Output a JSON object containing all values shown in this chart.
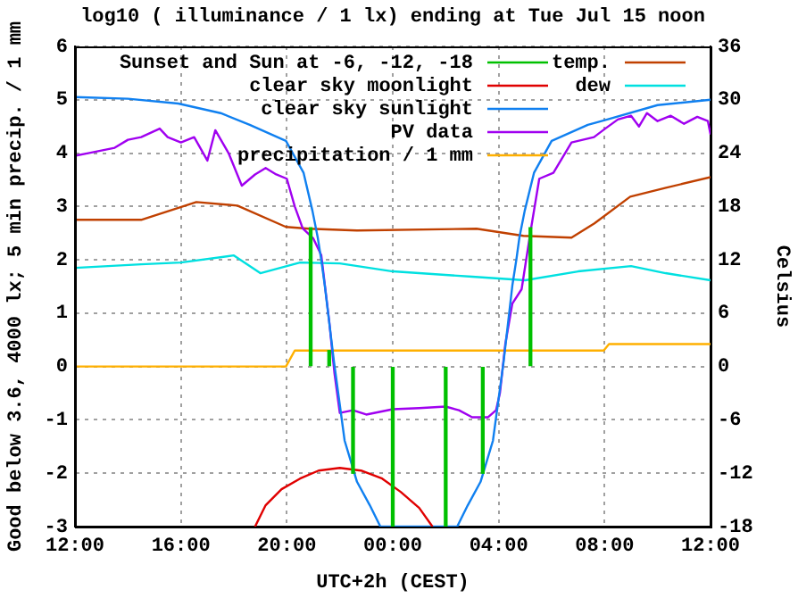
{
  "chart_data": {
    "type": "line",
    "title": "log10 ( illuminance / 1 lx) ending at Tue Jul 15 noon",
    "xlabel": "UTC+2h (CEST)",
    "ylabel": "Good below 3.6, 4000 lx; 5 min precip. / 1 mm",
    "y2label": "Celsius",
    "xlim": [
      "--07-14T12:00",
      "--07-15T12:00"
    ],
    "xticks": [
      {
        "value": "--07-14T12:00",
        "label": "12:00"
      },
      {
        "value": "--07-14T16:00",
        "label": "16:00"
      },
      {
        "value": "--07-14T20:00",
        "label": "20:00"
      },
      {
        "value": "--07-15T00:00",
        "label": "00:00"
      },
      {
        "value": "--07-15T04:00",
        "label": "04:00"
      },
      {
        "value": "--07-15T08:00",
        "label": "08:00"
      },
      {
        "value": "--07-15T12:00",
        "label": "12:00"
      }
    ],
    "ylim": [
      -3,
      6
    ],
    "yticks": [
      -3,
      -2,
      -1,
      0,
      1,
      2,
      3,
      4,
      5,
      6
    ],
    "y2lim": [
      -18,
      36
    ],
    "y2ticks": [
      -18,
      -12,
      -6,
      0,
      6,
      12,
      18,
      24,
      30,
      36
    ],
    "grid": true,
    "legend": "top",
    "series": [
      {
        "name": "Sunset and Sun at -6, -12, -18",
        "type": "bar",
        "color": "#00c000",
        "x": [
          "--07-14T20:54",
          "--07-14T21:36",
          "--07-14T22:30",
          "--07-15T00:00",
          "--07-15T02:00",
          "--07-15T03:24",
          "--07-15T05:12"
        ],
        "base": [
          0,
          0,
          -2,
          -3,
          -3,
          -2,
          0
        ],
        "values": [
          2.6,
          0.3,
          2,
          3,
          3,
          2,
          2.6
        ]
      },
      {
        "name": "clear sky moonlight",
        "color": "#e00000",
        "x": [
          "--07-14T18:48",
          "--07-14T19:12",
          "--07-14T19:48",
          "--07-14T20:30",
          "--07-14T21:12",
          "--07-14T22:00",
          "--07-14T22:48",
          "--07-14T23:36",
          "--07-15T00:18",
          "--07-15T01:00",
          "--07-15T01:30"
        ],
        "values": [
          -3,
          -2.6,
          -2.3,
          -2.1,
          -1.95,
          -1.9,
          -1.95,
          -2.1,
          -2.35,
          -2.65,
          -3
        ]
      },
      {
        "name": "clear sky sunlight",
        "color": "#1080f0",
        "x": [
          "--07-14T12:00",
          "--07-14T14:00",
          "--07-14T15:54",
          "--07-14T17:30",
          "--07-14T18:36",
          "--07-14T19:58",
          "--07-14T20:38",
          "--07-14T20:58",
          "--07-14T21:10",
          "--07-14T21:18",
          "--07-14T21:26",
          "--07-14T21:47",
          "--07-14T22:11",
          "--07-14T22:39",
          "--07-14T23:08",
          "--07-14T23:32",
          "--07-15T02:26",
          "--07-15T02:50",
          "--07-15T03:19",
          "--07-15T03:47",
          "--07-15T04:11",
          "--07-15T04:31",
          "--07-15T04:40",
          "--07-15T04:47",
          "--07-15T04:59",
          "--07-15T05:20",
          "--07-15T06:00",
          "--07-15T07:22",
          "--07-15T08:06",
          "--07-15T10:00",
          "--07-15T12:00"
        ],
        "values": [
          5.05,
          5.02,
          4.93,
          4.75,
          4.53,
          4.23,
          3.63,
          2.92,
          2.42,
          2.0,
          1.52,
          0.08,
          -1.39,
          -2.16,
          -2.6,
          -3,
          -3,
          -2.6,
          -2.16,
          -1.39,
          0.08,
          1.52,
          2.0,
          2.42,
          2.92,
          3.63,
          4.23,
          4.53,
          4.63,
          4.9,
          5.0
        ]
      },
      {
        "name": "PV data",
        "color": "#a000f0",
        "x": [
          "--07-14T12:00",
          "--07-14T12:30",
          "--07-14T13:00",
          "--07-14T13:30",
          "--07-14T14:00",
          "--07-14T14:30",
          "--07-14T15:12",
          "--07-14T15:30",
          "--07-14T16:00",
          "--07-14T16:30",
          "--07-14T17:00",
          "--07-14T17:18",
          "--07-14T17:48",
          "--07-14T18:18",
          "--07-14T18:48",
          "--07-14T19:12",
          "--07-14T19:36",
          "--07-14T20:00",
          "--07-14T20:18",
          "--07-14T20:36",
          "--07-14T21:00",
          "--07-14T21:18",
          "--07-14T21:36",
          "--07-14T21:48",
          "--07-14T22:00",
          "--07-14T22:30",
          "--07-14T23:00",
          "--07-14T23:30",
          "--07-15T00:00",
          "--07-15T01:00",
          "--07-15T02:00",
          "--07-15T02:30",
          "--07-15T03:00",
          "--07-15T03:36",
          "--07-15T03:54",
          "--07-15T04:03",
          "--07-15T04:15",
          "--07-15T04:31",
          "--07-15T04:52",
          "--07-15T05:12",
          "--07-15T05:32",
          "--07-15T06:04",
          "--07-15T06:45",
          "--07-15T07:36",
          "--07-15T08:00",
          "--07-15T08:30",
          "--07-15T09:00",
          "--07-15T09:18",
          "--07-15T09:36",
          "--07-15T10:00",
          "--07-15T10:30",
          "--07-15T11:00",
          "--07-15T11:30",
          "--07-15T11:54",
          "--07-15T12:00"
        ],
        "values": [
          3.95,
          4.0,
          4.05,
          4.1,
          4.25,
          4.3,
          4.46,
          4.3,
          4.2,
          4.3,
          3.86,
          4.43,
          4.0,
          3.39,
          3.6,
          3.72,
          3.6,
          3.52,
          3.0,
          2.59,
          2.4,
          2.09,
          0.85,
          -0.13,
          -0.87,
          -0.82,
          -0.9,
          -0.85,
          -0.8,
          -0.78,
          -0.75,
          -0.82,
          -0.95,
          -0.95,
          -0.82,
          -0.49,
          0.42,
          1.18,
          1.45,
          2.52,
          3.52,
          3.63,
          4.2,
          4.3,
          4.45,
          4.63,
          4.7,
          4.5,
          4.75,
          4.6,
          4.7,
          4.55,
          4.68,
          4.6,
          4.35
        ]
      },
      {
        "name": "precipitation / 1 mm",
        "color": "#ffb000",
        "x": [
          "--07-14T12:00",
          "--07-14T19:58",
          "--07-14T20:18",
          "--07-15T07:58",
          "--07-15T08:10",
          "--07-15T12:00"
        ],
        "values": [
          0,
          0,
          0.3,
          0.3,
          0.42,
          0.42
        ]
      },
      {
        "name": "temp.",
        "color": "#c04000",
        "axis": "y2",
        "x": [
          "--07-14T12:00",
          "--07-14T14:30",
          "--07-14T16:35",
          "--07-14T18:08",
          "--07-14T19:58",
          "--07-14T20:50",
          "--07-14T22:39",
          "--07-15T03:10",
          "--07-15T04:56",
          "--07-15T06:45",
          "--07-15T07:37",
          "--07-15T08:58",
          "--07-15T10:19",
          "--07-15T12:00"
        ],
        "values": [
          16.5,
          16.5,
          18.5,
          18.1,
          15.7,
          15.5,
          15.3,
          15.5,
          14.7,
          14.5,
          16.1,
          19.1,
          20.1,
          21.3
        ]
      },
      {
        "name": "dew",
        "color": "#00e0e0",
        "axis": "y2",
        "x": [
          "--07-14T12:00",
          "--07-14T14:30",
          "--07-14T16:00",
          "--07-14T18:00",
          "--07-14T19:00",
          "--07-14T20:30",
          "--07-14T22:00",
          "--07-15T00:00",
          "--07-15T03:00",
          "--07-15T05:00",
          "--07-15T07:00",
          "--07-15T09:00",
          "--07-15T10:18",
          "--07-15T12:00"
        ],
        "values": [
          11.1,
          11.5,
          11.7,
          12.5,
          10.5,
          11.7,
          11.6,
          10.7,
          10.1,
          9.7,
          10.7,
          11.3,
          10.5,
          9.7
        ]
      }
    ]
  }
}
